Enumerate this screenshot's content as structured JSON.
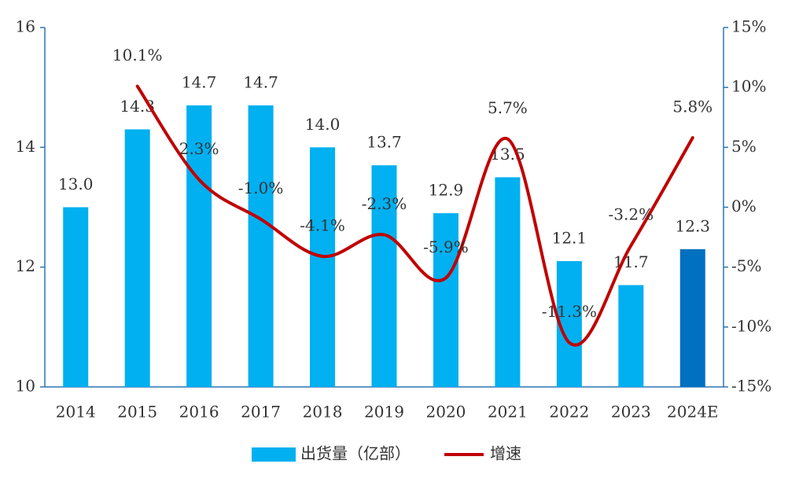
{
  "chart_data": {
    "type": "bar_line",
    "categories": [
      "2014",
      "2015",
      "2016",
      "2017",
      "2018",
      "2019",
      "2020",
      "2021",
      "2022",
      "2023",
      "2024E"
    ],
    "series": [
      {
        "name": "出货量（亿部）",
        "type": "bar",
        "color": "#00b0f0",
        "colors": [
          "#00b0f0",
          "#00b0f0",
          "#00b0f0",
          "#00b0f0",
          "#00b0f0",
          "#00b0f0",
          "#00b0f0",
          "#00b0f0",
          "#00b0f0",
          "#00b0f0",
          "#0070c0"
        ],
        "values": [
          13.0,
          14.3,
          14.7,
          14.7,
          14.0,
          13.7,
          12.9,
          13.5,
          12.1,
          11.7,
          12.3
        ],
        "value_labels": [
          "13.0",
          "14.3",
          "14.7",
          "14.7",
          "14.0",
          "13.7",
          "12.9",
          "13.5",
          "12.1",
          "11.7",
          "12.3"
        ]
      },
      {
        "name": "增速",
        "type": "line",
        "axis": "y2",
        "color": "#c00000",
        "values": [
          null,
          10.1,
          2.3,
          -1.0,
          -4.1,
          -2.3,
          -5.9,
          5.7,
          -11.3,
          -3.2,
          5.8
        ],
        "value_labels": [
          null,
          "10.1%",
          "2.3%",
          "-1.0%",
          "-4.1%",
          "-2.3%",
          "-5.9%",
          "5.7%",
          "-11.3%",
          "-3.2%",
          "5.8%"
        ]
      }
    ],
    "ylim": [
      10,
      16
    ],
    "yticks": [
      10,
      12,
      14,
      16
    ],
    "y2lim": [
      -15,
      15
    ],
    "y2ticks": [
      {
        "value": -15,
        "label": "-15%"
      },
      {
        "value": -10,
        "label": "-10%"
      },
      {
        "value": -5,
        "label": "-5%"
      },
      {
        "value": 0,
        "label": "0%"
      },
      {
        "value": 5,
        "label": "5%"
      },
      {
        "value": 10,
        "label": "10%"
      },
      {
        "value": 15,
        "label": "15%"
      }
    ],
    "legend": "bottom",
    "smooth": true
  }
}
